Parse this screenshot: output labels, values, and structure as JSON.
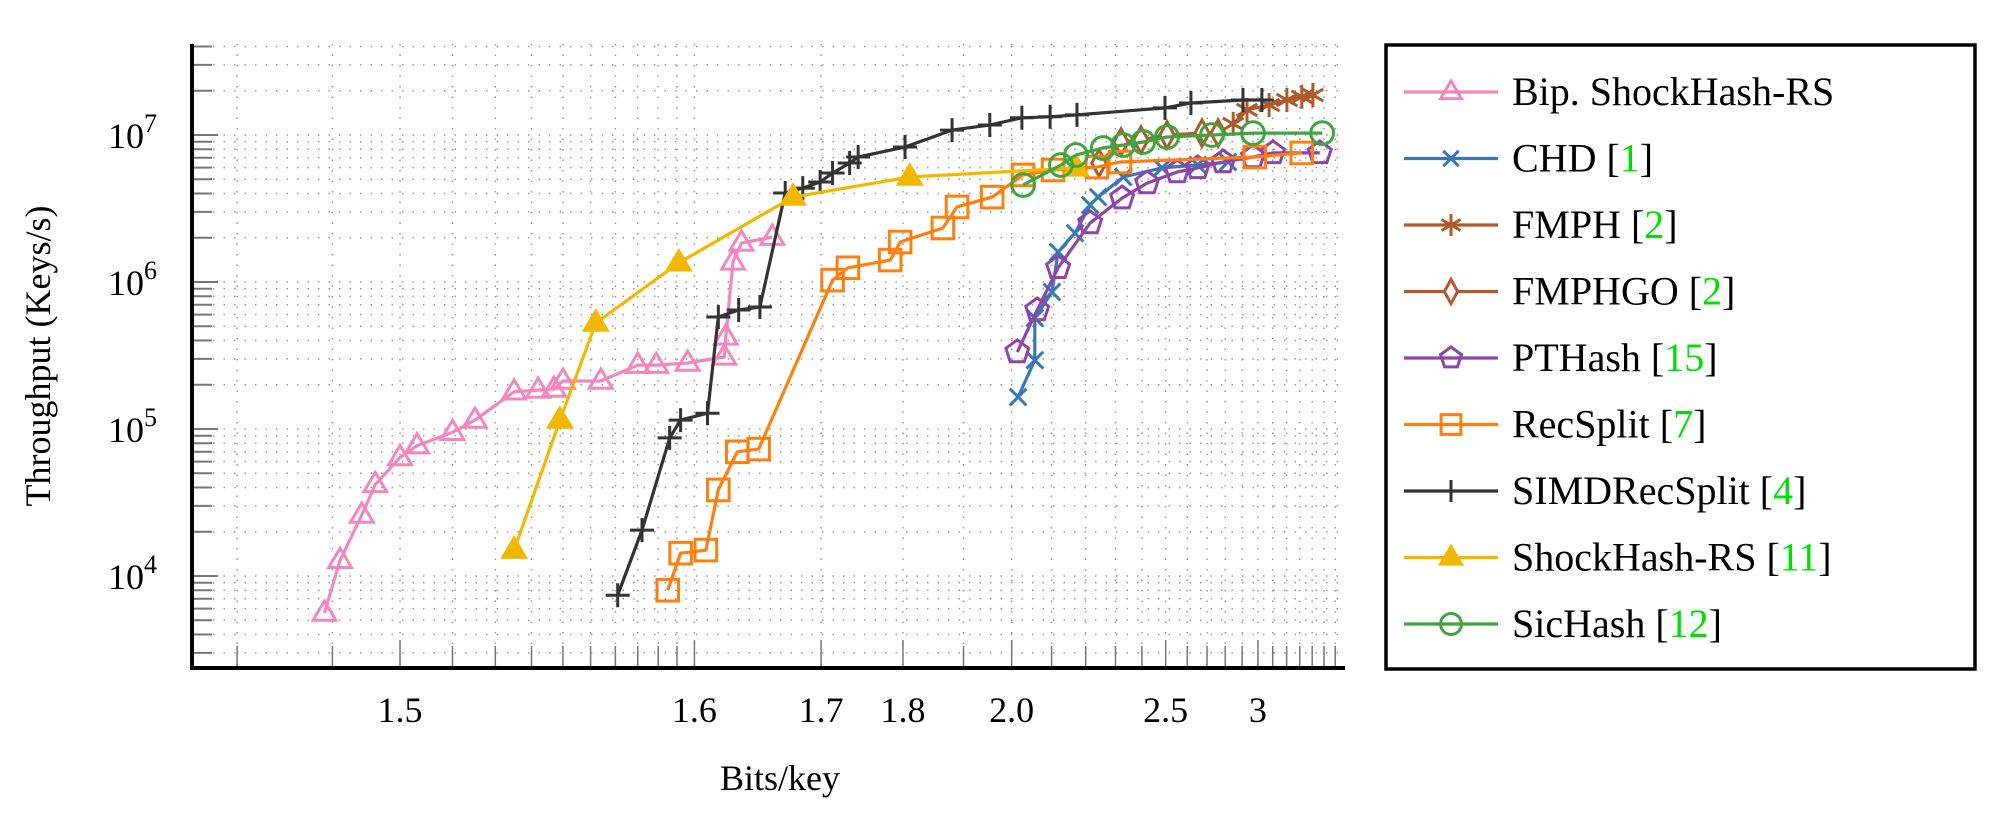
{
  "chart_data": {
    "type": "line",
    "title": "",
    "xlabel": "Bits/key",
    "ylabel": "Throughput (Keys/s)",
    "x_scale": "log of overhead above lower bound (non-linear)",
    "y_scale": "log",
    "xlim": [
      1.476,
      3.69
    ],
    "ylim": [
      2400,
      42000000
    ],
    "xticks": [
      "1.5",
      "1.6",
      "1.7",
      "1.8",
      "2.0",
      "2.5",
      "3"
    ],
    "yticks": [
      {
        "base": "10",
        "exp": "4",
        "value": 10000
      },
      {
        "base": "10",
        "exp": "5",
        "value": 100000
      },
      {
        "base": "10",
        "exp": "6",
        "value": 1000000
      },
      {
        "base": "10",
        "exp": "7",
        "value": 10000000
      }
    ],
    "grid": true,
    "legend_position": "outside-right",
    "series": [
      {
        "name": "Bip. ShockHash-RS",
        "cite": "",
        "color": "#f287c0",
        "marker": "triangle-open",
        "points": [
          [
            1.489,
            5600
          ],
          [
            1.491,
            12800
          ],
          [
            1.494,
            26000
          ],
          [
            1.496,
            42000
          ],
          [
            1.5,
            64000
          ],
          [
            1.503,
            77000
          ],
          [
            1.51,
            95000
          ],
          [
            1.515,
            115000
          ],
          [
            1.525,
            179000
          ],
          [
            1.532,
            184000
          ],
          [
            1.537,
            187000
          ],
          [
            1.54,
            212000
          ],
          [
            1.554,
            212000
          ],
          [
            1.57,
            272000
          ],
          [
            1.579,
            272000
          ],
          [
            1.596,
            281000
          ],
          [
            1.619,
            309000
          ],
          [
            1.62,
            423000
          ],
          [
            1.625,
            1370000
          ],
          [
            1.631,
            1840000
          ],
          [
            1.655,
            2020000
          ]
        ]
      },
      {
        "name": "CHD",
        "cite": "1",
        "color": "#3a78b5",
        "marker": "x",
        "points": [
          [
            2.015,
            165000
          ],
          [
            2.056,
            294000
          ],
          [
            2.056,
            569000
          ],
          [
            2.101,
            855000
          ],
          [
            2.118,
            1600000
          ],
          [
            2.167,
            2150000
          ],
          [
            2.214,
            3340000
          ],
          [
            2.24,
            3780000
          ],
          [
            2.328,
            5180000
          ],
          [
            2.484,
            5970000
          ],
          [
            2.652,
            6250000
          ],
          [
            2.816,
            6550000
          ]
        ]
      },
      {
        "name": "FMPH",
        "cite": "2",
        "color": "#b0592a",
        "marker": "asterisk",
        "points": [
          [
            2.846,
            11900000
          ],
          [
            2.93,
            14800000
          ],
          [
            3.075,
            16000000
          ],
          [
            3.202,
            17300000
          ],
          [
            3.316,
            18200000
          ],
          [
            3.406,
            18700000
          ]
        ]
      },
      {
        "name": "FMPHGO",
        "cite": "2",
        "color": "#b0592a",
        "marker": "diamond-open",
        "points": [
          [
            2.243,
            6450000
          ],
          [
            2.32,
            8960000
          ],
          [
            2.396,
            9250000
          ],
          [
            2.506,
            10000000
          ],
          [
            2.674,
            10300000
          ],
          [
            2.76,
            10300000
          ]
        ]
      },
      {
        "name": "PTHash",
        "cite": "15",
        "color": "#8e44a8",
        "marker": "pentagon-open",
        "points": [
          [
            2.013,
            334000
          ],
          [
            2.062,
            645000
          ],
          [
            2.118,
            1250000
          ],
          [
            2.214,
            2520000
          ],
          [
            2.324,
            3720000
          ],
          [
            2.421,
            4710000
          ],
          [
            2.552,
            5600000
          ],
          [
            2.652,
            5970000
          ],
          [
            2.788,
            6550000
          ],
          [
            2.968,
            7080000
          ],
          [
            3.102,
            7550000
          ],
          [
            3.464,
            7550000
          ]
        ]
      },
      {
        "name": "RecSplit",
        "cite": "7",
        "color": "#ff7f0e",
        "marker": "square-open",
        "points": [
          [
            1.585,
            8000
          ],
          [
            1.592,
            14300
          ],
          [
            1.607,
            15000
          ],
          [
            1.615,
            38500
          ],
          [
            1.628,
            70000
          ],
          [
            1.644,
            73000
          ],
          [
            1.712,
            1030000
          ],
          [
            1.729,
            1250000
          ],
          [
            1.782,
            1410000
          ],
          [
            1.796,
            1870000
          ],
          [
            1.863,
            2330000
          ],
          [
            1.888,
            3240000
          ],
          [
            1.957,
            3780000
          ],
          [
            2.027,
            5350000
          ],
          [
            2.104,
            5780000
          ],
          [
            2.236,
            6050000
          ],
          [
            2.316,
            6550000
          ],
          [
            2.98,
            7080000
          ],
          [
            3.316,
            7550000
          ]
        ]
      },
      {
        "name": "SIMDRecSplit",
        "cite": "4",
        "color": "#333333",
        "marker": "plus",
        "points": [
          [
            1.561,
            7400
          ],
          [
            1.572,
            20500
          ],
          [
            1.586,
            87000
          ],
          [
            1.592,
            115000
          ],
          [
            1.608,
            128000
          ],
          [
            1.615,
            578000
          ],
          [
            1.629,
            645000
          ],
          [
            1.645,
            676000
          ],
          [
            1.666,
            4030000
          ],
          [
            1.682,
            4350000
          ],
          [
            1.699,
            4790000
          ],
          [
            1.712,
            5510000
          ],
          [
            1.731,
            6450000
          ],
          [
            1.741,
            7080000
          ],
          [
            1.803,
            8280000
          ],
          [
            1.879,
            10800000
          ],
          [
            1.952,
            11700000
          ],
          [
            2.024,
            13100000
          ],
          [
            2.096,
            13300000
          ],
          [
            2.173,
            13700000
          ],
          [
            2.497,
            15300000
          ],
          [
            2.618,
            16500000
          ],
          [
            2.905,
            17300000
          ],
          [
            3.026,
            17300000
          ]
        ]
      },
      {
        "name": "ShockHash-RS",
        "cite": "11",
        "color": "#f2b800",
        "marker": "triangle-filled",
        "points": [
          [
            1.525,
            15000
          ],
          [
            1.539,
            115000
          ],
          [
            1.552,
            526000
          ],
          [
            1.591,
            1350000
          ],
          [
            1.673,
            3780000
          ],
          [
            1.81,
            5180000
          ],
          [
            2.17,
            5970000
          ]
        ]
      },
      {
        "name": "SicHash",
        "cite": "12",
        "color": "#3fa53f",
        "marker": "circle-open",
        "points": [
          [
            2.027,
            4570000
          ],
          [
            2.126,
            6250000
          ],
          [
            2.17,
            7310000
          ],
          [
            2.256,
            8160000
          ],
          [
            2.328,
            8550000
          ],
          [
            2.405,
            8960000
          ],
          [
            2.506,
            9690000
          ],
          [
            2.726,
            10000000
          ],
          [
            2.968,
            10300000
          ],
          [
            3.484,
            10300000
          ]
        ]
      }
    ]
  }
}
